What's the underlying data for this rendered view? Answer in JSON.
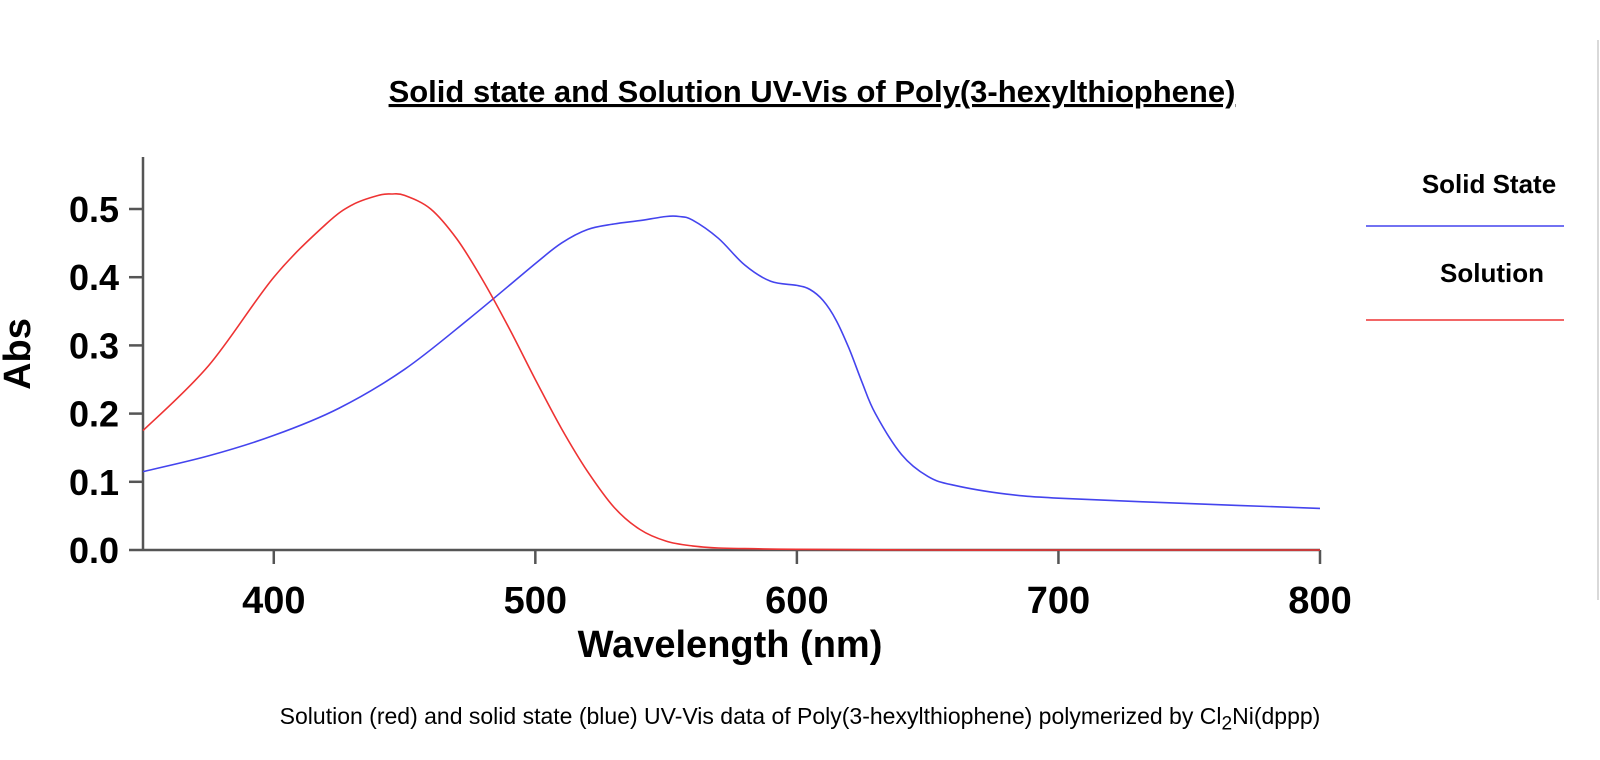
{
  "chart_data": {
    "type": "line",
    "title": "Solid state and Solution UV-Vis of Poly(3-hexylthiophene)",
    "xlabel": "Wavelength (nm)",
    "ylabel": "Abs",
    "xlim": [
      350,
      800
    ],
    "ylim": [
      0,
      0.58
    ],
    "xticks": [
      400,
      500,
      600,
      700,
      800
    ],
    "xtick_labels": [
      "400",
      "500",
      "600",
      "700",
      "800"
    ],
    "yticks": [
      0.0,
      0.1,
      0.2,
      0.3,
      0.4,
      0.5
    ],
    "ytick_labels": [
      "0.0",
      "0.1",
      "0.2",
      "0.3",
      "0.4",
      "0.5"
    ],
    "grid": false,
    "legend_position": "right",
    "series": [
      {
        "name": "Solid State",
        "color": "#4444ee",
        "x": [
          350,
          375,
          400,
          425,
          450,
          475,
          500,
          510,
          520,
          530,
          540,
          550,
          555,
          560,
          570,
          580,
          590,
          600,
          605,
          610,
          615,
          620,
          625,
          630,
          640,
          650,
          660,
          680,
          700,
          750,
          800
        ],
        "y": [
          0.115,
          0.138,
          0.168,
          0.208,
          0.265,
          0.34,
          0.42,
          0.45,
          0.47,
          0.478,
          0.483,
          0.489,
          0.489,
          0.484,
          0.457,
          0.418,
          0.394,
          0.388,
          0.382,
          0.366,
          0.337,
          0.295,
          0.245,
          0.2,
          0.14,
          0.108,
          0.095,
          0.082,
          0.076,
          0.068,
          0.061
        ]
      },
      {
        "name": "Solution",
        "color": "#ee3333",
        "x": [
          350,
          375,
          400,
          420,
          430,
          440,
          445,
          450,
          460,
          470,
          480,
          490,
          500,
          510,
          520,
          530,
          540,
          550,
          560,
          570,
          580,
          600,
          650,
          700,
          800
        ],
        "y": [
          0.175,
          0.27,
          0.4,
          0.478,
          0.506,
          0.52,
          0.522,
          0.52,
          0.5,
          0.456,
          0.395,
          0.325,
          0.25,
          0.178,
          0.115,
          0.063,
          0.03,
          0.013,
          0.006,
          0.003,
          0.002,
          0.001,
          0.0,
          0.0,
          0.0
        ]
      }
    ]
  },
  "caption": {
    "prefix": "Solution (red) and solid state (blue) UV-Vis data of Poly(3-hexylthiophene) polymerized by Cl",
    "subscript": "2",
    "suffix": "Ni(dppp)"
  }
}
